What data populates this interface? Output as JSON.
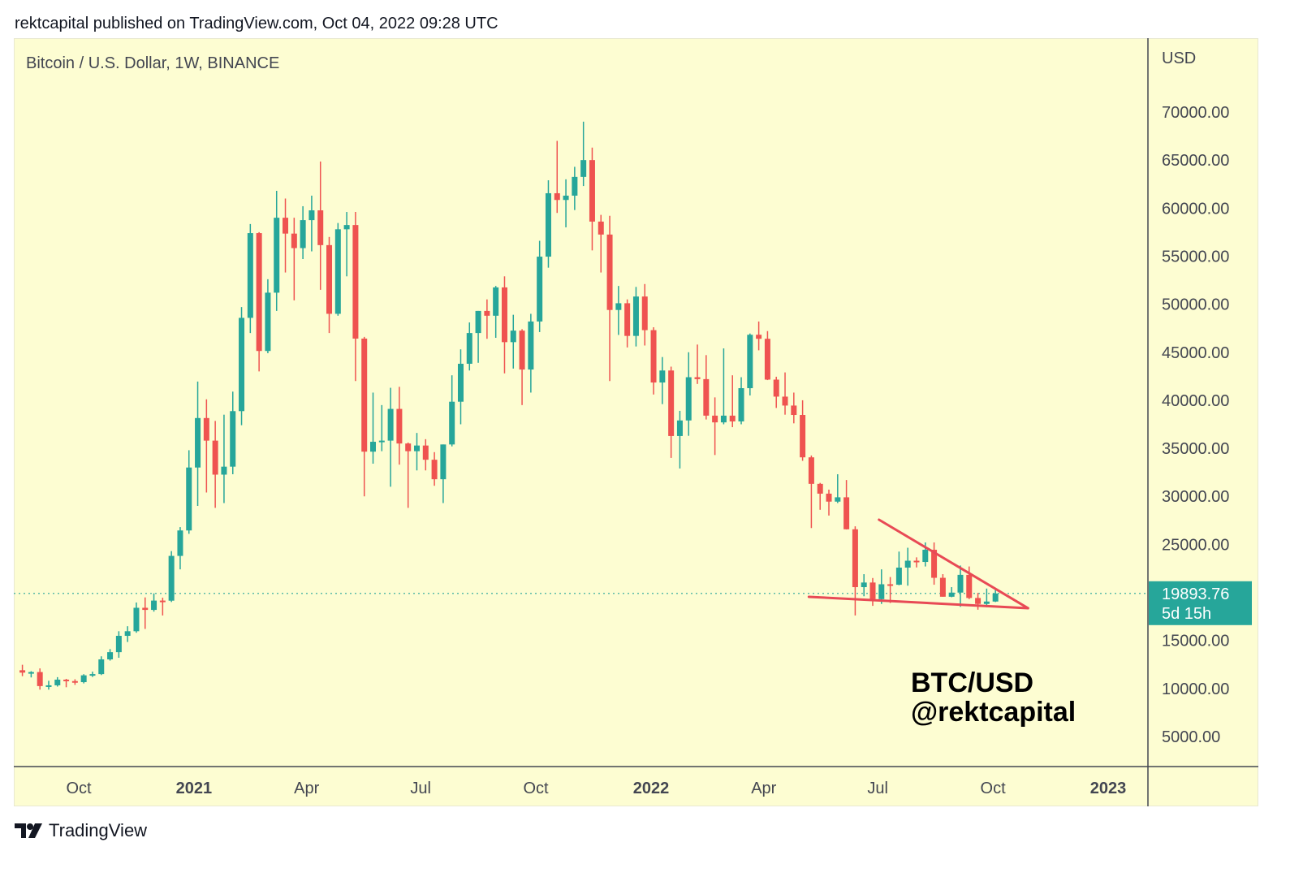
{
  "header": {
    "published": "rektcapital published on TradingView.com, Oct 04, 2022 09:28 UTC"
  },
  "footer": {
    "brand": "TradingView",
    "logo_icon": "tradingview-logo-icon"
  },
  "colors": {
    "background": "#fdfdd2",
    "up": "#26a69a",
    "down": "#ef5350",
    "trendline": "#e84a55",
    "price_label": "#26a69a"
  },
  "chart_data": {
    "type": "candlestick",
    "title": "Bitcoin / U.S. Dollar, 1W, BINANCE",
    "currency_label": "USD",
    "ylim": [
      1500,
      77500
    ],
    "y_ticks": [
      "70000.00",
      "65000.00",
      "60000.00",
      "55000.00",
      "50000.00",
      "45000.00",
      "40000.00",
      "35000.00",
      "30000.00",
      "25000.00",
      "15000.00",
      "10000.00",
      "5000.00"
    ],
    "x_ticks": [
      {
        "label": "Oct",
        "date": "2020-10-01",
        "bold": false
      },
      {
        "label": "2021",
        "date": "2021-01-01",
        "bold": true
      },
      {
        "label": "Apr",
        "date": "2021-04-01",
        "bold": false
      },
      {
        "label": "Jul",
        "date": "2021-07-01",
        "bold": false
      },
      {
        "label": "Oct",
        "date": "2021-10-01",
        "bold": false
      },
      {
        "label": "2022",
        "date": "2022-01-01",
        "bold": true
      },
      {
        "label": "Apr",
        "date": "2022-04-01",
        "bold": false
      },
      {
        "label": "Jul",
        "date": "2022-07-01",
        "bold": false
      },
      {
        "label": "Oct",
        "date": "2022-10-01",
        "bold": false
      },
      {
        "label": "2023",
        "date": "2023-01-01",
        "bold": true
      }
    ],
    "last_price": {
      "value": 19893.76,
      "label": "19893.76",
      "countdown": "5d 15h"
    },
    "annotation": {
      "line1": "BTC/USD",
      "line2": "@rektcapital"
    },
    "trendlines": [
      {
        "name": "upper",
        "from": [
          "2022-07-02",
          27570
        ],
        "to": [
          "2022-10-29",
          18360
        ]
      },
      {
        "name": "lower",
        "from": [
          "2022-05-07",
          19540
        ],
        "to": [
          "2022-10-29",
          18360
        ]
      }
    ],
    "candles": [
      [
        "2020-08-17",
        11900,
        12470,
        11280,
        11650
      ],
      [
        "2020-08-24",
        11650,
        11800,
        11150,
        11710
      ],
      [
        "2020-08-31",
        11710,
        12090,
        9880,
        10250
      ],
      [
        "2020-09-07",
        10250,
        10800,
        9880,
        10330
      ],
      [
        "2020-09-14",
        10330,
        11180,
        10200,
        10920
      ],
      [
        "2020-09-21",
        10920,
        11000,
        10130,
        10770
      ],
      [
        "2020-09-28",
        10770,
        10960,
        10375,
        10660
      ],
      [
        "2020-10-05",
        10660,
        11490,
        10530,
        11370
      ],
      [
        "2020-10-12",
        11370,
        11750,
        11200,
        11500
      ],
      [
        "2020-10-19",
        11500,
        13350,
        11400,
        13030
      ],
      [
        "2020-10-26",
        13030,
        14100,
        12900,
        13780
      ],
      [
        "2020-11-02",
        13780,
        15960,
        13200,
        15480
      ],
      [
        "2020-11-09",
        15480,
        16480,
        14840,
        15960
      ],
      [
        "2020-11-16",
        15960,
        18950,
        15800,
        18400
      ],
      [
        "2020-11-23",
        18400,
        19480,
        16200,
        18180
      ],
      [
        "2020-11-30",
        18180,
        19900,
        18000,
        19150
      ],
      [
        "2020-12-07",
        19150,
        19450,
        17600,
        19140
      ],
      [
        "2020-12-14",
        19140,
        24300,
        19000,
        23800
      ],
      [
        "2020-12-21",
        23800,
        26800,
        22400,
        26450
      ],
      [
        "2020-12-28",
        26450,
        34800,
        26100,
        33000
      ],
      [
        "2021-01-04",
        33000,
        41950,
        29000,
        38150
      ],
      [
        "2021-01-11",
        38150,
        40100,
        30400,
        35800
      ],
      [
        "2021-01-18",
        35800,
        37850,
        28800,
        32260
      ],
      [
        "2021-01-25",
        32260,
        38500,
        29300,
        33090
      ],
      [
        "2021-02-01",
        33090,
        40900,
        32300,
        38870
      ],
      [
        "2021-02-08",
        38870,
        49700,
        37400,
        48580
      ],
      [
        "2021-02-15",
        48580,
        58350,
        47000,
        57400
      ],
      [
        "2021-02-22",
        57400,
        57500,
        43000,
        45130
      ],
      [
        "2021-03-01",
        45130,
        52600,
        44900,
        51200
      ],
      [
        "2021-03-08",
        51200,
        61800,
        49300,
        59000
      ],
      [
        "2021-03-15",
        59000,
        61000,
        53300,
        57350
      ],
      [
        "2021-03-22",
        57350,
        59000,
        50400,
        55840
      ],
      [
        "2021-03-29",
        55840,
        60200,
        54700,
        58750
      ],
      [
        "2021-04-05",
        58750,
        61300,
        55500,
        59770
      ],
      [
        "2021-04-12",
        59770,
        64850,
        51500,
        56150
      ],
      [
        "2021-04-19",
        56150,
        57000,
        47000,
        49000
      ],
      [
        "2021-04-26",
        49000,
        58450,
        48800,
        57800
      ],
      [
        "2021-05-03",
        57800,
        59600,
        52900,
        58240
      ],
      [
        "2021-05-10",
        58240,
        59600,
        42000,
        46420
      ],
      [
        "2021-05-17",
        46420,
        46600,
        30000,
        34650
      ],
      [
        "2021-05-24",
        34650,
        40800,
        33400,
        35680
      ],
      [
        "2021-05-31",
        35680,
        39500,
        34700,
        35800
      ],
      [
        "2021-06-07",
        35800,
        41300,
        31000,
        39100
      ],
      [
        "2021-06-14",
        39100,
        41400,
        33300,
        35500
      ],
      [
        "2021-06-21",
        35500,
        35600,
        28800,
        34700
      ],
      [
        "2021-06-28",
        34700,
        36600,
        32700,
        35290
      ],
      [
        "2021-07-05",
        35290,
        35950,
        32700,
        33810
      ],
      [
        "2021-07-12",
        33810,
        34600,
        31100,
        31780
      ],
      [
        "2021-07-19",
        31780,
        35400,
        29300,
        35400
      ],
      [
        "2021-07-26",
        35400,
        42600,
        35200,
        39850
      ],
      [
        "2021-08-02",
        39850,
        45300,
        37500,
        43800
      ],
      [
        "2021-08-09",
        43800,
        48100,
        43100,
        47000
      ],
      [
        "2021-08-16",
        47000,
        49300,
        43900,
        49300
      ],
      [
        "2021-08-23",
        49300,
        50500,
        46400,
        48800
      ],
      [
        "2021-08-30",
        48800,
        51900,
        46500,
        51750
      ],
      [
        "2021-09-06",
        51750,
        52900,
        42800,
        46050
      ],
      [
        "2021-09-13",
        46050,
        48900,
        43300,
        47250
      ],
      [
        "2021-09-20",
        47250,
        47400,
        39500,
        43200
      ],
      [
        "2021-09-27",
        43200,
        49000,
        40800,
        48200
      ],
      [
        "2021-10-04",
        48200,
        56600,
        47100,
        54950
      ],
      [
        "2021-10-11",
        54950,
        62900,
        53800,
        61550
      ],
      [
        "2021-10-18",
        61550,
        67000,
        59500,
        60850
      ],
      [
        "2021-10-25",
        60850,
        63000,
        58000,
        61300
      ],
      [
        "2021-11-01",
        61300,
        64300,
        59800,
        63250
      ],
      [
        "2021-11-08",
        63250,
        69000,
        62300,
        65000
      ],
      [
        "2021-11-15",
        65000,
        66300,
        55600,
        58600
      ],
      [
        "2021-11-22",
        58600,
        59300,
        53300,
        57250
      ],
      [
        "2021-11-29",
        57250,
        59200,
        42000,
        49400
      ],
      [
        "2021-12-06",
        49400,
        51900,
        46800,
        50100
      ],
      [
        "2021-12-13",
        50100,
        50500,
        45500,
        46700
      ],
      [
        "2021-12-20",
        46700,
        51800,
        45600,
        50800
      ],
      [
        "2021-12-27",
        50800,
        52100,
        45700,
        47300
      ],
      [
        "2022-01-03",
        47300,
        47600,
        40600,
        41850
      ],
      [
        "2022-01-10",
        41850,
        44500,
        39600,
        43100
      ],
      [
        "2022-01-17",
        43100,
        43500,
        34000,
        36280
      ],
      [
        "2022-01-24",
        36280,
        38900,
        32900,
        37900
      ],
      [
        "2022-01-31",
        37900,
        45000,
        36300,
        42400
      ],
      [
        "2022-02-07",
        42400,
        45800,
        41700,
        42200
      ],
      [
        "2022-02-14",
        42200,
        44700,
        38000,
        38400
      ],
      [
        "2022-02-21",
        38400,
        40300,
        34300,
        37700
      ],
      [
        "2022-02-28",
        37700,
        45400,
        37500,
        38400
      ],
      [
        "2022-03-07",
        38400,
        42600,
        37200,
        37800
      ],
      [
        "2022-03-14",
        37800,
        42400,
        37500,
        41260
      ],
      [
        "2022-03-21",
        41260,
        46950,
        40500,
        46820
      ],
      [
        "2022-03-28",
        46820,
        48200,
        45200,
        46400
      ],
      [
        "2022-04-04",
        46400,
        47200,
        42100,
        42150
      ],
      [
        "2022-04-11",
        42150,
        42450,
        39200,
        40380
      ],
      [
        "2022-04-18",
        40380,
        42900,
        38500,
        39450
      ],
      [
        "2022-04-25",
        39450,
        40800,
        37600,
        38470
      ],
      [
        "2022-05-02",
        38470,
        40000,
        33700,
        34060
      ],
      [
        "2022-05-09",
        34060,
        34250,
        26700,
        31300
      ],
      [
        "2022-05-16",
        31300,
        31400,
        28600,
        30280
      ],
      [
        "2022-05-23",
        30280,
        30700,
        28000,
        29450
      ],
      [
        "2022-05-30",
        29450,
        32300,
        29300,
        29900
      ],
      [
        "2022-06-06",
        29900,
        31700,
        26550,
        26570
      ],
      [
        "2022-06-13",
        26570,
        26880,
        17600,
        20550
      ],
      [
        "2022-06-20",
        20550,
        21900,
        19600,
        21030
      ],
      [
        "2022-06-27",
        21030,
        21500,
        18600,
        19300
      ],
      [
        "2022-07-04",
        19300,
        22400,
        18800,
        20850
      ],
      [
        "2022-07-11",
        20850,
        21600,
        18900,
        20800
      ],
      [
        "2022-07-18",
        20800,
        24250,
        20750,
        22580
      ],
      [
        "2022-07-25",
        22580,
        24650,
        20700,
        23300
      ],
      [
        "2022-08-01",
        23300,
        23650,
        22600,
        23170
      ],
      [
        "2022-08-08",
        23170,
        25200,
        22700,
        24440
      ],
      [
        "2022-08-15",
        24440,
        25200,
        20800,
        21520
      ],
      [
        "2022-08-22",
        21520,
        21900,
        19550,
        19550
      ],
      [
        "2022-08-29",
        19550,
        20550,
        19500,
        19980
      ],
      [
        "2022-09-05",
        19980,
        22800,
        18500,
        21830
      ],
      [
        "2022-09-12",
        21830,
        22700,
        19300,
        19420
      ],
      [
        "2022-09-19",
        19420,
        19950,
        18200,
        18800
      ],
      [
        "2022-09-26",
        18800,
        20400,
        18450,
        19050
      ],
      [
        "2022-10-03",
        19050,
        20480,
        19000,
        19894
      ]
    ]
  }
}
